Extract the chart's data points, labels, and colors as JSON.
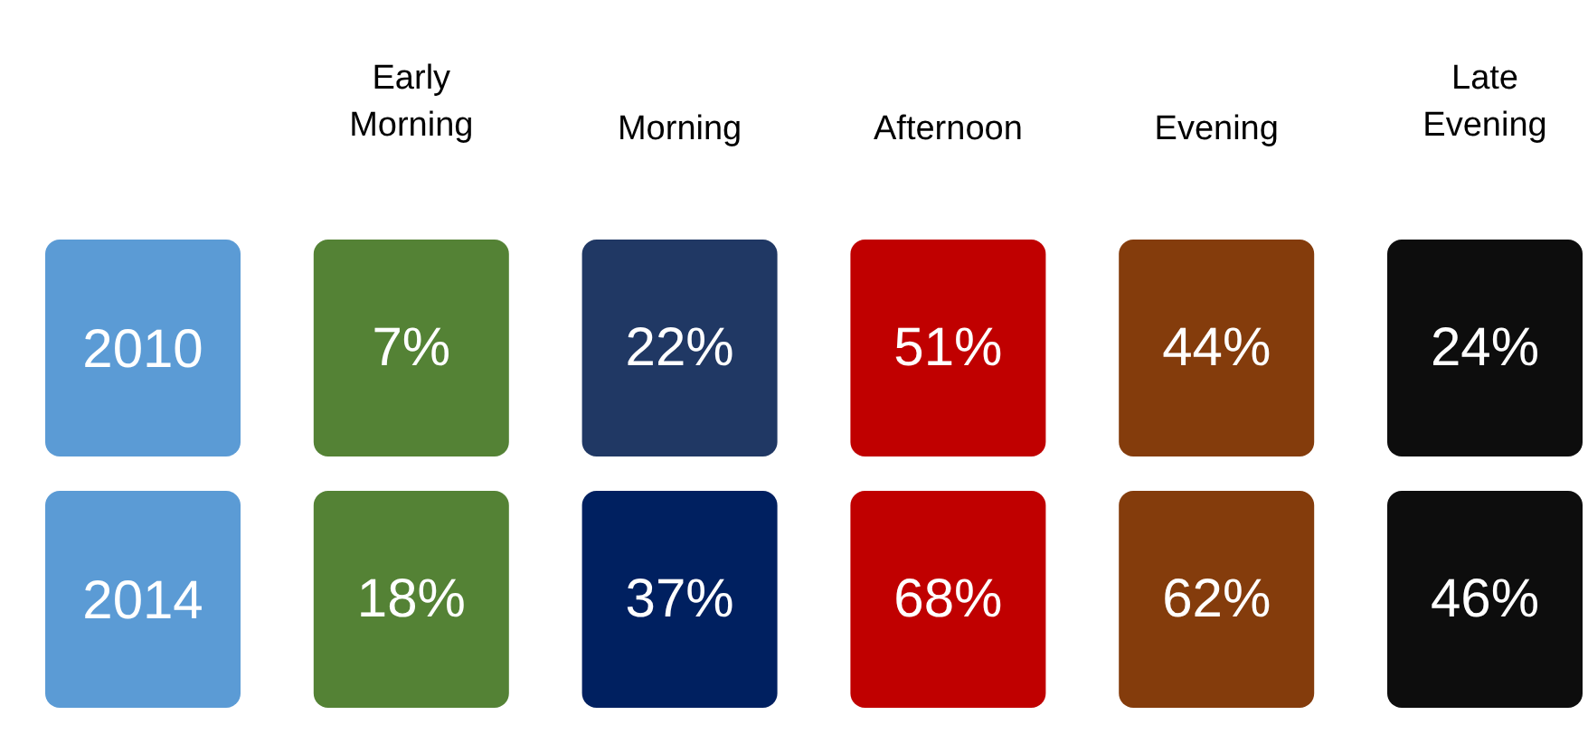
{
  "chart_data": {
    "type": "heatmap",
    "categories": [
      "Early Morning",
      "Morning",
      "Afternoon",
      "Evening",
      "Late Evening"
    ],
    "y_categories": [
      "2010",
      "2014"
    ],
    "cells": [
      [
        7,
        22,
        51,
        44,
        24
      ],
      [
        18,
        37,
        68,
        62,
        46
      ]
    ],
    "cell_labels": [
      [
        "7%",
        "22%",
        "51%",
        "44%",
        "24%"
      ],
      [
        "18%",
        "37%",
        "68%",
        "62%",
        "46%"
      ]
    ],
    "colors": [
      [
        "#5b9bd5",
        "#548235",
        "#203864",
        "#c00000",
        "#843c0c",
        "#0d0d0d"
      ],
      [
        "#5b9bd5",
        "#548235",
        "#002060",
        "#c00000",
        "#843c0c",
        "#0d0d0d"
      ]
    ]
  }
}
